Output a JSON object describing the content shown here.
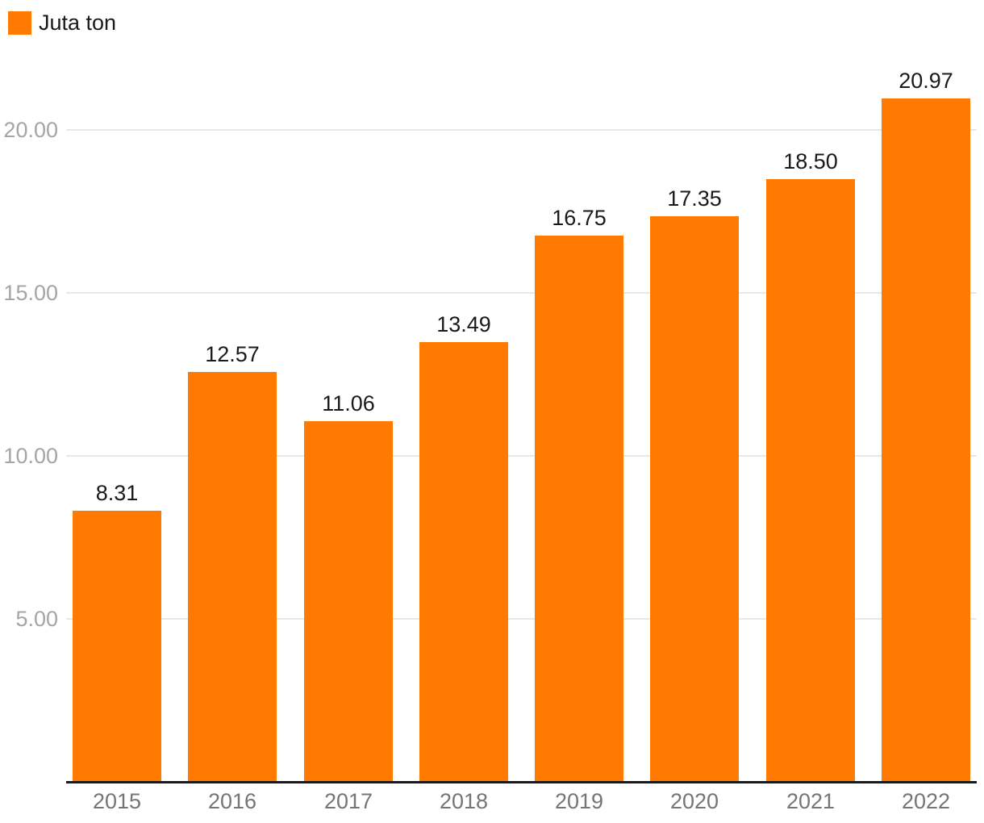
{
  "legend": {
    "label": "Juta ton"
  },
  "colors": {
    "bar": "#FF7A00",
    "grid": "#e8e8e8",
    "axis": "#1a1a1a",
    "y_tick_text": "#a5a5a5",
    "x_tick_text": "#757575",
    "value_label_text": "#1a1a1a",
    "legend_text": "#1a1a1a",
    "background": "#ffffff"
  },
  "chart_data": {
    "type": "bar",
    "title": "",
    "categories": [
      "2015",
      "2016",
      "2017",
      "2018",
      "2019",
      "2020",
      "2021",
      "2022"
    ],
    "series": [
      {
        "name": "Juta ton",
        "values": [
          8.31,
          12.57,
          11.06,
          13.49,
          16.75,
          17.35,
          18.5,
          20.97
        ]
      }
    ],
    "value_labels": [
      "8.31",
      "12.57",
      "11.06",
      "13.49",
      "16.75",
      "17.35",
      "18.50",
      "20.97"
    ],
    "y_ticks": [
      {
        "value": 5,
        "label": "5.00"
      },
      {
        "value": 10,
        "label": "10.00"
      },
      {
        "value": 15,
        "label": "15.00"
      },
      {
        "value": 20,
        "label": "20.00"
      }
    ],
    "ylim": [
      0,
      22
    ],
    "grid": true,
    "legend_position": "top-left"
  }
}
